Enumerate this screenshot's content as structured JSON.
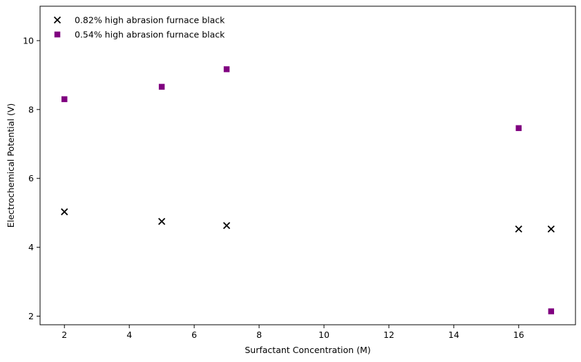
{
  "chart_data": {
    "type": "scatter",
    "title": "",
    "xlabel": "Surfactant Concentration (M)",
    "ylabel": "Electrochemical Potential (V)",
    "xlim": [
      1.25,
      17.75
    ],
    "ylim": [
      1.75,
      11.0
    ],
    "xticks": [
      2,
      4,
      6,
      8,
      10,
      12,
      14,
      16
    ],
    "yticks": [
      2,
      4,
      6,
      8,
      10
    ],
    "grid": false,
    "legend_position": "top-left",
    "series": [
      {
        "name": "0.82% high abrasion furnace black",
        "marker": "x",
        "color": "#000000",
        "points": [
          {
            "x": 2,
            "y": 5.03
          },
          {
            "x": 5,
            "y": 4.75
          },
          {
            "x": 7,
            "y": 4.63
          },
          {
            "x": 16,
            "y": 4.53
          },
          {
            "x": 17,
            "y": 4.53
          }
        ]
      },
      {
        "name": "0.54% high abrasion furnace black",
        "marker": "square",
        "color": "#800080",
        "points": [
          {
            "x": 2,
            "y": 8.3
          },
          {
            "x": 5,
            "y": 8.66
          },
          {
            "x": 7,
            "y": 9.17
          },
          {
            "x": 16,
            "y": 7.46
          },
          {
            "x": 17,
            "y": 2.14
          }
        ]
      }
    ]
  }
}
